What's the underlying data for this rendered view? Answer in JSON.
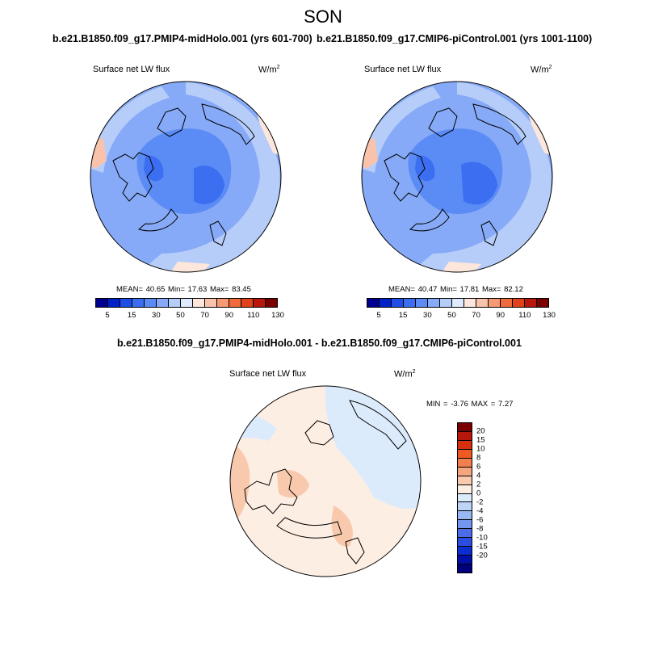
{
  "season": "SON",
  "panels": [
    {
      "run_title": "b.e21.B1850.f09_g17.PMIP4-midHolo.001 (yrs 601-700)",
      "label": "Surface net LW flux",
      "units": "W/m",
      "units_sup": "2",
      "stats": "MEAN=  40.65  Min=  17.63  Max=  83.45",
      "colorbar": {
        "colors": [
          "#00008f",
          "#0021c9",
          "#1f4ee6",
          "#3b6ef0",
          "#5b8bf5",
          "#86aaf7",
          "#b6cdf9",
          "#dfeafd",
          "#fde7dc",
          "#f9c3ab",
          "#f59a74",
          "#ef6b3e",
          "#e0421c",
          "#b8180b",
          "#7a0000"
        ],
        "ticks": [
          "5",
          "15",
          "30",
          "50",
          "70",
          "90",
          "110",
          "130"
        ]
      }
    },
    {
      "run_title": "b.e21.B1850.f09_g17.CMIP6-piControl.001 (yrs 1001-1100)",
      "label": "Surface net LW flux",
      "units": "W/m",
      "units_sup": "2",
      "stats": "MEAN=  40.47  Min=  17.81  Max=  82.12",
      "colorbar": {
        "colors": [
          "#00008f",
          "#0021c9",
          "#1f4ee6",
          "#3b6ef0",
          "#5b8bf5",
          "#86aaf7",
          "#b6cdf9",
          "#dfeafd",
          "#fde7dc",
          "#f9c3ab",
          "#f59a74",
          "#ef6b3e",
          "#e0421c",
          "#b8180b",
          "#7a0000"
        ],
        "ticks": [
          "5",
          "15",
          "30",
          "50",
          "70",
          "90",
          "110",
          "130"
        ]
      }
    },
    {
      "run_title": "b.e21.B1850.f09_g17.PMIP4-midHolo.001 - b.e21.B1850.f09_g17.CMIP6-piControl.001",
      "label": "Surface net LW flux",
      "units": "W/m",
      "units_sup": "2",
      "stats": "MIN =  -3.76 MAX =   7.27",
      "colorbar": {
        "colors": [
          "#7a0000",
          "#b8180b",
          "#d6300f",
          "#ef5a22",
          "#f2804e",
          "#f6a67f",
          "#f9c9ad",
          "#fdeee3",
          "#dcebfb",
          "#bcd5f7",
          "#98b7f3",
          "#7394ef",
          "#4b6ee8",
          "#2a4fe0",
          "#0c2ed0",
          "#0010a8",
          "#00007a"
        ],
        "ticks": [
          "20",
          "15",
          "10",
          "8",
          "6",
          "4",
          "2",
          "0",
          "-2",
          "-4",
          "-6",
          "-8",
          "-10",
          "-15",
          "-20"
        ]
      }
    }
  ]
}
